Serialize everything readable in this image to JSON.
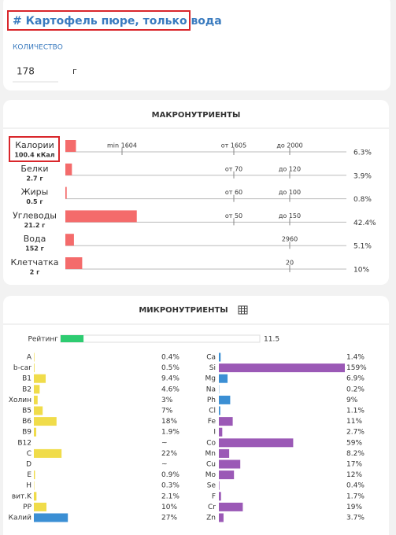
{
  "header": {
    "title": "# Картофель пюре, только вода",
    "quantity_label": "КОЛИЧЕСТВО",
    "quantity": "178",
    "unit": "г"
  },
  "macro": {
    "title": "МАКРОНУТРИЕНТЫ",
    "rows": [
      {
        "name": "Калории",
        "amount": "100.4 кКал",
        "percent": 6.3,
        "percent_label": "6.3%",
        "min": "min 1604",
        "from": "от 1605",
        "to": "до 2000"
      },
      {
        "name": "Белки",
        "amount": "2.7 г",
        "percent": 3.9,
        "percent_label": "3.9%",
        "from": "от 70",
        "to": "до 120"
      },
      {
        "name": "Жиры",
        "amount": "0.5 г",
        "percent": 0.8,
        "percent_label": "0.8%",
        "from": "от 60",
        "to": "до 100"
      },
      {
        "name": "Углеводы",
        "amount": "21.2 г",
        "percent": 42.4,
        "percent_label": "42.4%",
        "from": "от 50",
        "to": "до 150"
      },
      {
        "name": "Вода",
        "amount": "152 г",
        "percent": 5.1,
        "percent_label": "5.1%",
        "to": "2960"
      },
      {
        "name": "Клетчатка",
        "amount": "2 г",
        "percent": 10,
        "percent_label": "10%",
        "to": "20"
      }
    ]
  },
  "micro": {
    "title": "МИКРОНУТРИЕНТЫ",
    "rating_label": "Рейтинг",
    "rating": 11.5,
    "left": [
      {
        "name": "A",
        "value": 0.4,
        "label": "0.4%",
        "color": "#f0dc4a"
      },
      {
        "name": "b-car",
        "value": 0.5,
        "label": "0.5%",
        "color": "#f0dc4a"
      },
      {
        "name": "B1",
        "value": 9.4,
        "label": "9.4%",
        "color": "#f0dc4a"
      },
      {
        "name": "B2",
        "value": 4.6,
        "label": "4.6%",
        "color": "#f0dc4a"
      },
      {
        "name": "Холин",
        "value": 3,
        "label": "3%",
        "color": "#f0dc4a"
      },
      {
        "name": "B5",
        "value": 7,
        "label": "7%",
        "color": "#f0dc4a"
      },
      {
        "name": "B6",
        "value": 18,
        "label": "18%",
        "color": "#f0dc4a"
      },
      {
        "name": "B9",
        "value": 1.9,
        "label": "1.9%",
        "color": "#f0dc4a"
      },
      {
        "name": "B12",
        "value": null,
        "label": "~",
        "color": "#f0dc4a"
      },
      {
        "name": "C",
        "value": 22,
        "label": "22%",
        "color": "#f0dc4a"
      },
      {
        "name": "D",
        "value": null,
        "label": "~",
        "color": "#f0dc4a"
      },
      {
        "name": "E",
        "value": 0.9,
        "label": "0.9%",
        "color": "#f0dc4a"
      },
      {
        "name": "H",
        "value": 0.3,
        "label": "0.3%",
        "color": "#f0dc4a"
      },
      {
        "name": "вит.K",
        "value": 2.1,
        "label": "2.1%",
        "color": "#f0dc4a"
      },
      {
        "name": "PP",
        "value": 10,
        "label": "10%",
        "color": "#f0dc4a"
      },
      {
        "name": "Калий",
        "value": 27,
        "label": "27%",
        "color": "#3b8fd4"
      }
    ],
    "right": [
      {
        "name": "Ca",
        "value": 1.4,
        "label": "1.4%",
        "color": "#3b8fd4"
      },
      {
        "name": "Si",
        "value": 159,
        "label": "159%",
        "color": "#9b59b6"
      },
      {
        "name": "Mg",
        "value": 6.9,
        "label": "6.9%",
        "color": "#3b8fd4"
      },
      {
        "name": "Na",
        "value": 0.2,
        "label": "0.2%",
        "color": "#3b8fd4"
      },
      {
        "name": "Ph",
        "value": 9,
        "label": "9%",
        "color": "#3b8fd4"
      },
      {
        "name": "Cl",
        "value": 1.1,
        "label": "1.1%",
        "color": "#3b8fd4"
      },
      {
        "name": "Fe",
        "value": 11,
        "label": "11%",
        "color": "#9b59b6"
      },
      {
        "name": "I",
        "value": 2.7,
        "label": "2.7%",
        "color": "#9b59b6"
      },
      {
        "name": "Co",
        "value": 59,
        "label": "59%",
        "color": "#9b59b6"
      },
      {
        "name": "Mn",
        "value": 8.2,
        "label": "8.2%",
        "color": "#9b59b6"
      },
      {
        "name": "Cu",
        "value": 17,
        "label": "17%",
        "color": "#9b59b6"
      },
      {
        "name": "Mo",
        "value": 12,
        "label": "12%",
        "color": "#9b59b6"
      },
      {
        "name": "Se",
        "value": 0.4,
        "label": "0.4%",
        "color": "#9b59b6"
      },
      {
        "name": "F",
        "value": 1.7,
        "label": "1.7%",
        "color": "#9b59b6"
      },
      {
        "name": "Cr",
        "value": 19,
        "label": "19%",
        "color": "#9b59b6"
      },
      {
        "name": "Zn",
        "value": 3.7,
        "label": "3.7%",
        "color": "#9b59b6"
      }
    ]
  }
}
